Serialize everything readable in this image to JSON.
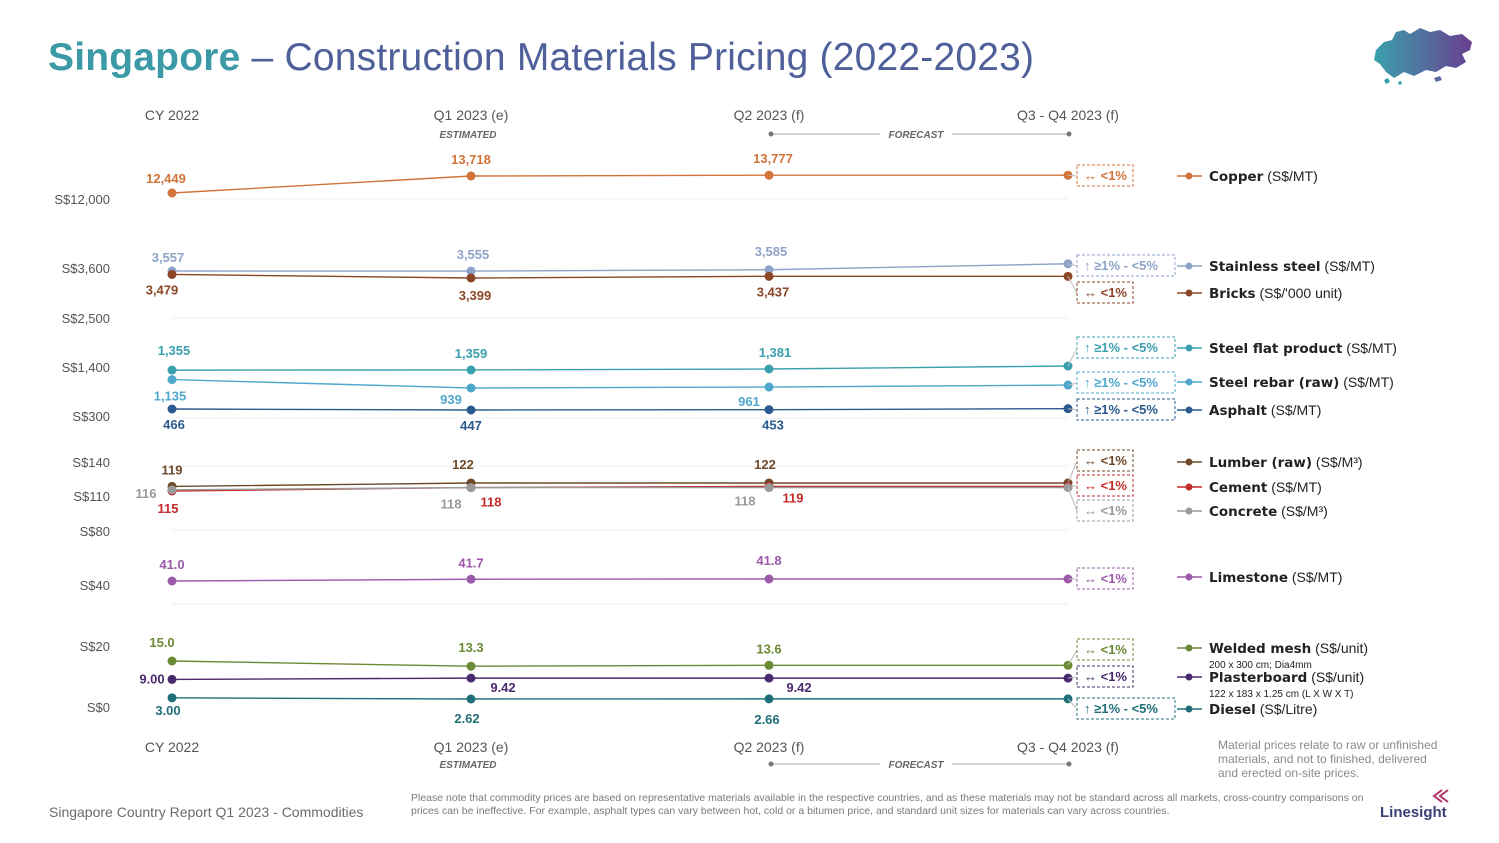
{
  "title": {
    "country": "Singapore",
    "dash": "–",
    "rest": "Construction Materials Pricing (2022-2023)"
  },
  "chart_data": {
    "type": "line",
    "categories_top": [
      "CY 2022",
      "Q1 2023 (e)",
      "Q2 2023 (f)",
      "Q3 - Q4 2023 (f)"
    ],
    "categories_bottom": [
      "CY 2022",
      "Q1 2023 (e)",
      "Q2 2023 (f)",
      "Q3 - Q4 2023 (f)"
    ],
    "estimated_label": "ESTIMATED",
    "forecast_label": "FORECAST",
    "y_ticks": [
      "S$12,000",
      "S$3,600",
      "S$2,500",
      "S$1,400",
      "S$300",
      "S$140",
      "S$110",
      "S$80",
      "S$40",
      "S$20",
      "S$0"
    ],
    "series": [
      {
        "name": "Copper",
        "unit": "(S$/MT)",
        "color": "#d2733a",
        "values": [
          12449,
          13718,
          13777
        ],
        "labels": [
          "12,449",
          "13,718",
          "13,777"
        ],
        "outlook": "↔ <1%"
      },
      {
        "name": "Stainless steel",
        "unit": "(S$/MT)",
        "color": "#8fa3c8",
        "values": [
          3557,
          3555,
          3585
        ],
        "labels": [
          "3,557",
          "3,555",
          "3,585"
        ],
        "outlook": "↑ ≥1% - <5%"
      },
      {
        "name": "Bricks",
        "unit": "(S$/'000 unit)",
        "color": "#8b4626",
        "values": [
          3479,
          3399,
          3437
        ],
        "labels": [
          "3,479",
          "3,399",
          "3,437"
        ],
        "outlook": "↔ <1%"
      },
      {
        "name": "Steel flat product",
        "unit": "(S$/MT)",
        "color": "#3aa0ad",
        "values": [
          1355,
          1359,
          1381
        ],
        "labels": [
          "1,355",
          "1,359",
          "1,381"
        ],
        "outlook": "↑ ≥1% - <5%"
      },
      {
        "name": "Steel rebar (raw)",
        "unit": "(S$/MT)",
        "color": "#4fa8cc",
        "values": [
          1135,
          939,
          961
        ],
        "labels": [
          "1,135",
          "939",
          "961"
        ],
        "outlook": "↑ ≥1% - <5%"
      },
      {
        "name": "Asphalt",
        "unit": "(S$/MT)",
        "color": "#2a5a8e",
        "values": [
          466,
          447,
          453
        ],
        "labels": [
          "466",
          "447",
          "453"
        ],
        "outlook": "↑ ≥1% - <5%"
      },
      {
        "name": "Lumber (raw)",
        "unit": "(S$/M³)",
        "color": "#6e4a2a",
        "values": [
          119,
          122,
          122
        ],
        "labels": [
          "119",
          "122",
          "122"
        ],
        "outlook": "↔ <1%"
      },
      {
        "name": "Cement",
        "unit": "(S$/MT)",
        "color": "#c42b2b",
        "values": [
          115,
          118,
          119
        ],
        "labels": [
          "115",
          "118",
          "119"
        ],
        "outlook": "↔ <1%"
      },
      {
        "name": "Concrete",
        "unit": "(S$/M³)",
        "color": "#9a9a9a",
        "values": [
          116,
          118,
          118
        ],
        "labels": [
          "116",
          "118",
          "118"
        ],
        "outlook": "↔ <1%"
      },
      {
        "name": "Limestone",
        "unit": "(S$/MT)",
        "color": "#9a5aa8",
        "values": [
          41.0,
          41.7,
          41.8
        ],
        "labels": [
          "41.0",
          "41.7",
          "41.8"
        ],
        "outlook": "↔ <1%"
      },
      {
        "name": "Welded mesh",
        "unit": "(S$/unit)",
        "sub": "200 x 300 cm; Dia4mm",
        "color": "#6b8a35",
        "values": [
          15.0,
          13.3,
          13.6
        ],
        "labels": [
          "15.0",
          "13.3",
          "13.6"
        ],
        "outlook": "↔ <1%"
      },
      {
        "name": "Plasterboard",
        "unit": "(S$/unit)",
        "sub": "122 x 183 x 1.25 cm (L X W X T)",
        "color": "#4a2a6e",
        "values": [
          9.0,
          9.42,
          9.42
        ],
        "labels": [
          "9.00",
          "9.42",
          "9.42"
        ],
        "outlook": "↔ <1%"
      },
      {
        "name": "Diesel",
        "unit": "(S$/Litre)",
        "color": "#1f6f7a",
        "values": [
          3.0,
          2.62,
          2.66
        ],
        "labels": [
          "3.00",
          "2.62",
          "2.66"
        ],
        "outlook": "↑ ≥1% - <5%"
      }
    ]
  },
  "side_note": "Material prices relate to raw or unfinished materials, and not to finished, delivered and erected on-site prices.",
  "footer_left": "Singapore Country Report Q1 2023 - Commodities",
  "footer_note": "Please note that commodity prices are based on representative materials available in the respective countries, and as these materials may not be standard across all markets, cross-country comparisons on prices can be ineffective. For example, asphalt types can vary between hot, cold or a bitumen price, and standard unit sizes for materials can vary across countries.",
  "logo": "Linesight",
  "colors": {
    "title_primary": "#3b9aa6",
    "title_secondary": "#4f5f99",
    "axis_text": "#555555"
  }
}
